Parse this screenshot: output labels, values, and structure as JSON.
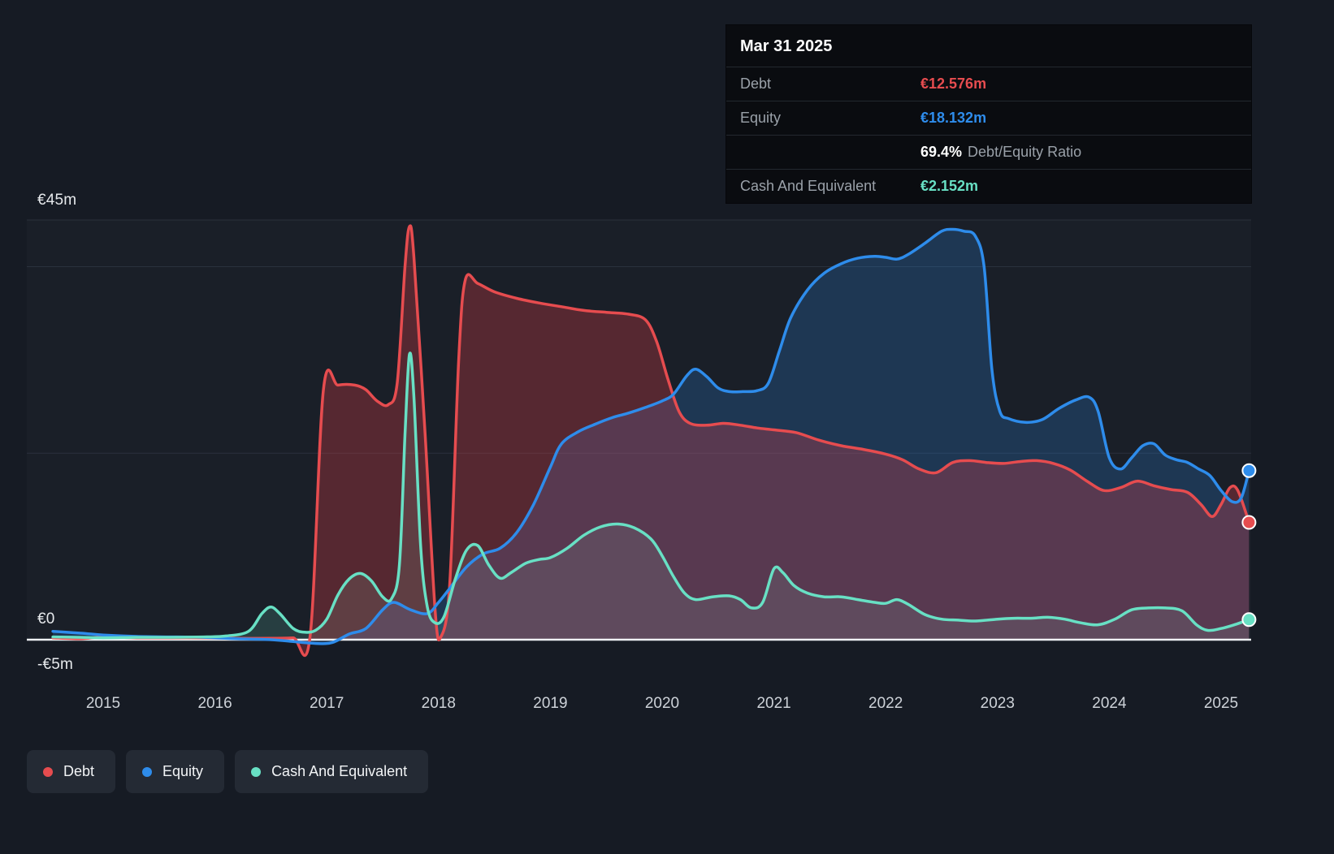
{
  "colors": {
    "debt": "#e64c4f",
    "equity": "#2e8ceb",
    "cash": "#68e0c4",
    "grid": "#2a313d",
    "zero_line": "#eef1f4",
    "background": "#161b24",
    "tooltip_bg": "#0a0c10"
  },
  "tooltip": {
    "date": "Mar 31 2025",
    "debt_label": "Debt",
    "debt_value": "€12.576m",
    "equity_label": "Equity",
    "equity_value": "€18.132m",
    "ratio_value": "69.4%",
    "ratio_text": "Debt/Equity Ratio",
    "cash_label": "Cash And Equivalent",
    "cash_value": "€2.152m"
  },
  "legend": [
    {
      "key": "debt",
      "label": "Debt",
      "color": "#e64c4f"
    },
    {
      "key": "equity",
      "label": "Equity",
      "color": "#2e8ceb"
    },
    {
      "key": "cash",
      "label": "Cash And Equivalent",
      "color": "#68e0c4"
    }
  ],
  "chart_data": {
    "type": "line",
    "x_unit": "decimal_year",
    "xlim": [
      2014.32,
      2025.27
    ],
    "ylim": [
      -5,
      45
    ],
    "y_ticks": [
      {
        "label": "€45m",
        "value": 45
      },
      {
        "label": "€0",
        "value": 0
      },
      {
        "label": "-€5m",
        "value": -5
      }
    ],
    "gridlines_m": [
      45,
      40,
      20
    ],
    "x_tick_labels": [
      "2015",
      "2016",
      "2017",
      "2018",
      "2019",
      "2020",
      "2021",
      "2022",
      "2023",
      "2024",
      "2025"
    ],
    "legend_position": "bottom-left",
    "series": [
      {
        "key": "debt",
        "name": "Debt",
        "color": "#e64c4f",
        "fill": "rgba(224,64,74,0.30)",
        "points": [
          [
            2014.55,
            0.2
          ],
          [
            2014.8,
            0.1
          ],
          [
            2015.0,
            0.3
          ],
          [
            2015.3,
            0.2
          ],
          [
            2015.6,
            0.2
          ],
          [
            2015.9,
            0.2
          ],
          [
            2016.2,
            0.15
          ],
          [
            2016.5,
            0.15
          ],
          [
            2016.7,
            0.2
          ],
          [
            2016.85,
            0.3
          ],
          [
            2016.97,
            26.8
          ],
          [
            2017.1,
            27.3
          ],
          [
            2017.25,
            27.3
          ],
          [
            2017.35,
            26.8
          ],
          [
            2017.45,
            25.6
          ],
          [
            2017.55,
            25.2
          ],
          [
            2017.63,
            27.5
          ],
          [
            2017.7,
            40.0
          ],
          [
            2017.74,
            44.3
          ],
          [
            2017.78,
            41.0
          ],
          [
            2017.88,
            22.0
          ],
          [
            2017.97,
            3.0
          ],
          [
            2018.02,
            0.3
          ],
          [
            2018.1,
            6.0
          ],
          [
            2018.18,
            30.0
          ],
          [
            2018.24,
            38.6
          ],
          [
            2018.35,
            38.2
          ],
          [
            2018.5,
            37.3
          ],
          [
            2018.7,
            36.6
          ],
          [
            2018.9,
            36.1
          ],
          [
            2019.1,
            35.7
          ],
          [
            2019.3,
            35.3
          ],
          [
            2019.5,
            35.1
          ],
          [
            2019.7,
            34.9
          ],
          [
            2019.85,
            34.3
          ],
          [
            2019.95,
            32.0
          ],
          [
            2020.05,
            28.0
          ],
          [
            2020.15,
            24.5
          ],
          [
            2020.25,
            23.2
          ],
          [
            2020.4,
            23.0
          ],
          [
            2020.55,
            23.2
          ],
          [
            2020.7,
            23.0
          ],
          [
            2020.85,
            22.7
          ],
          [
            2021.0,
            22.5
          ],
          [
            2021.2,
            22.2
          ],
          [
            2021.4,
            21.4
          ],
          [
            2021.6,
            20.8
          ],
          [
            2021.8,
            20.4
          ],
          [
            2022.0,
            19.9
          ],
          [
            2022.15,
            19.3
          ],
          [
            2022.3,
            18.3
          ],
          [
            2022.45,
            17.9
          ],
          [
            2022.6,
            19.0
          ],
          [
            2022.75,
            19.2
          ],
          [
            2022.9,
            19.0
          ],
          [
            2023.05,
            18.9
          ],
          [
            2023.2,
            19.1
          ],
          [
            2023.35,
            19.2
          ],
          [
            2023.5,
            18.9
          ],
          [
            2023.65,
            18.2
          ],
          [
            2023.8,
            17.0
          ],
          [
            2023.95,
            16.0
          ],
          [
            2024.1,
            16.3
          ],
          [
            2024.25,
            17.0
          ],
          [
            2024.4,
            16.5
          ],
          [
            2024.55,
            16.1
          ],
          [
            2024.7,
            15.8
          ],
          [
            2024.82,
            14.5
          ],
          [
            2024.92,
            13.2
          ],
          [
            2025.0,
            14.5
          ],
          [
            2025.08,
            16.3
          ],
          [
            2025.15,
            16.0
          ],
          [
            2025.25,
            12.576
          ]
        ]
      },
      {
        "key": "equity",
        "name": "Equity",
        "color": "#2e8ceb",
        "fill": "rgba(45,140,237,0.22)",
        "points": [
          [
            2014.55,
            0.9
          ],
          [
            2014.8,
            0.7
          ],
          [
            2015.0,
            0.5
          ],
          [
            2015.3,
            0.35
          ],
          [
            2015.6,
            0.3
          ],
          [
            2015.9,
            0.25
          ],
          [
            2016.2,
            0.1
          ],
          [
            2016.5,
            0.0
          ],
          [
            2016.7,
            -0.2
          ],
          [
            2016.9,
            -0.4
          ],
          [
            2017.05,
            -0.3
          ],
          [
            2017.2,
            0.6
          ],
          [
            2017.35,
            1.2
          ],
          [
            2017.5,
            3.2
          ],
          [
            2017.6,
            4.0
          ],
          [
            2017.75,
            3.2
          ],
          [
            2017.9,
            2.8
          ],
          [
            2018.0,
            4.0
          ],
          [
            2018.1,
            5.5
          ],
          [
            2018.25,
            7.8
          ],
          [
            2018.4,
            9.2
          ],
          [
            2018.55,
            9.8
          ],
          [
            2018.7,
            11.5
          ],
          [
            2018.85,
            14.5
          ],
          [
            2019.0,
            18.5
          ],
          [
            2019.1,
            21.0
          ],
          [
            2019.25,
            22.3
          ],
          [
            2019.4,
            23.1
          ],
          [
            2019.55,
            23.8
          ],
          [
            2019.7,
            24.3
          ],
          [
            2019.85,
            24.9
          ],
          [
            2020.0,
            25.6
          ],
          [
            2020.1,
            26.3
          ],
          [
            2020.22,
            28.3
          ],
          [
            2020.3,
            29.0
          ],
          [
            2020.4,
            28.2
          ],
          [
            2020.5,
            27.0
          ],
          [
            2020.6,
            26.6
          ],
          [
            2020.72,
            26.6
          ],
          [
            2020.85,
            26.7
          ],
          [
            2020.95,
            27.5
          ],
          [
            2021.05,
            31.0
          ],
          [
            2021.15,
            34.5
          ],
          [
            2021.3,
            37.5
          ],
          [
            2021.45,
            39.3
          ],
          [
            2021.6,
            40.3
          ],
          [
            2021.75,
            40.9
          ],
          [
            2021.9,
            41.1
          ],
          [
            2022.0,
            41.0
          ],
          [
            2022.1,
            40.8
          ],
          [
            2022.2,
            41.3
          ],
          [
            2022.35,
            42.5
          ],
          [
            2022.5,
            43.8
          ],
          [
            2022.6,
            44.0
          ],
          [
            2022.7,
            43.8
          ],
          [
            2022.8,
            43.3
          ],
          [
            2022.88,
            40.0
          ],
          [
            2022.95,
            29.0
          ],
          [
            2023.02,
            24.5
          ],
          [
            2023.1,
            23.7
          ],
          [
            2023.25,
            23.3
          ],
          [
            2023.4,
            23.6
          ],
          [
            2023.55,
            24.8
          ],
          [
            2023.7,
            25.7
          ],
          [
            2023.82,
            26.0
          ],
          [
            2023.9,
            24.5
          ],
          [
            2024.0,
            19.5
          ],
          [
            2024.1,
            18.3
          ],
          [
            2024.2,
            19.5
          ],
          [
            2024.3,
            20.8
          ],
          [
            2024.4,
            21.0
          ],
          [
            2024.5,
            19.8
          ],
          [
            2024.6,
            19.3
          ],
          [
            2024.7,
            19.0
          ],
          [
            2024.8,
            18.3
          ],
          [
            2024.9,
            17.6
          ],
          [
            2025.0,
            16.0
          ],
          [
            2025.1,
            14.8
          ],
          [
            2025.18,
            15.2
          ],
          [
            2025.25,
            18.132
          ]
        ]
      },
      {
        "key": "cash",
        "name": "Cash And Equivalent",
        "color": "#68e0c4",
        "fill": "rgba(110,224,198,0.16)",
        "points": [
          [
            2014.55,
            0.3
          ],
          [
            2014.8,
            0.25
          ],
          [
            2015.0,
            0.2
          ],
          [
            2015.3,
            0.25
          ],
          [
            2015.6,
            0.25
          ],
          [
            2015.9,
            0.3
          ],
          [
            2016.1,
            0.4
          ],
          [
            2016.3,
            0.9
          ],
          [
            2016.42,
            2.8
          ],
          [
            2016.5,
            3.5
          ],
          [
            2016.58,
            2.8
          ],
          [
            2016.7,
            1.2
          ],
          [
            2016.8,
            0.8
          ],
          [
            2016.9,
            1.0
          ],
          [
            2017.0,
            2.2
          ],
          [
            2017.1,
            4.8
          ],
          [
            2017.2,
            6.5
          ],
          [
            2017.3,
            7.1
          ],
          [
            2017.4,
            6.3
          ],
          [
            2017.5,
            4.6
          ],
          [
            2017.58,
            4.4
          ],
          [
            2017.65,
            8.0
          ],
          [
            2017.7,
            22.0
          ],
          [
            2017.74,
            30.6
          ],
          [
            2017.78,
            26.0
          ],
          [
            2017.84,
            10.0
          ],
          [
            2017.9,
            3.5
          ],
          [
            2017.97,
            1.8
          ],
          [
            2018.05,
            2.5
          ],
          [
            2018.15,
            6.5
          ],
          [
            2018.25,
            9.6
          ],
          [
            2018.35,
            10.1
          ],
          [
            2018.45,
            8.0
          ],
          [
            2018.55,
            6.6
          ],
          [
            2018.65,
            7.2
          ],
          [
            2018.78,
            8.2
          ],
          [
            2018.9,
            8.6
          ],
          [
            2019.0,
            8.8
          ],
          [
            2019.15,
            9.8
          ],
          [
            2019.3,
            11.2
          ],
          [
            2019.45,
            12.1
          ],
          [
            2019.6,
            12.4
          ],
          [
            2019.75,
            12.0
          ],
          [
            2019.9,
            10.8
          ],
          [
            2020.0,
            9.0
          ],
          [
            2020.1,
            6.8
          ],
          [
            2020.2,
            5.0
          ],
          [
            2020.3,
            4.3
          ],
          [
            2020.45,
            4.6
          ],
          [
            2020.6,
            4.7
          ],
          [
            2020.7,
            4.3
          ],
          [
            2020.8,
            3.4
          ],
          [
            2020.9,
            4.0
          ],
          [
            2021.0,
            7.6
          ],
          [
            2021.08,
            7.2
          ],
          [
            2021.18,
            5.8
          ],
          [
            2021.3,
            5.0
          ],
          [
            2021.45,
            4.6
          ],
          [
            2021.6,
            4.6
          ],
          [
            2021.75,
            4.3
          ],
          [
            2021.9,
            4.0
          ],
          [
            2022.0,
            3.9
          ],
          [
            2022.1,
            4.3
          ],
          [
            2022.2,
            3.8
          ],
          [
            2022.35,
            2.7
          ],
          [
            2022.5,
            2.2
          ],
          [
            2022.65,
            2.1
          ],
          [
            2022.8,
            2.0
          ],
          [
            2023.0,
            2.2
          ],
          [
            2023.15,
            2.3
          ],
          [
            2023.3,
            2.3
          ],
          [
            2023.45,
            2.4
          ],
          [
            2023.6,
            2.2
          ],
          [
            2023.75,
            1.8
          ],
          [
            2023.9,
            1.6
          ],
          [
            2024.05,
            2.2
          ],
          [
            2024.2,
            3.2
          ],
          [
            2024.35,
            3.4
          ],
          [
            2024.5,
            3.4
          ],
          [
            2024.65,
            3.1
          ],
          [
            2024.78,
            1.6
          ],
          [
            2024.88,
            1.0
          ],
          [
            2025.0,
            1.2
          ],
          [
            2025.12,
            1.6
          ],
          [
            2025.25,
            2.152
          ]
        ]
      }
    ],
    "end_markers": [
      {
        "series": "Equity",
        "x": 2025.25,
        "y": 18.132
      },
      {
        "series": "Debt",
        "x": 2025.25,
        "y": 12.576
      },
      {
        "series": "Cash And Equivalent",
        "x": 2025.25,
        "y": 2.152
      }
    ]
  }
}
